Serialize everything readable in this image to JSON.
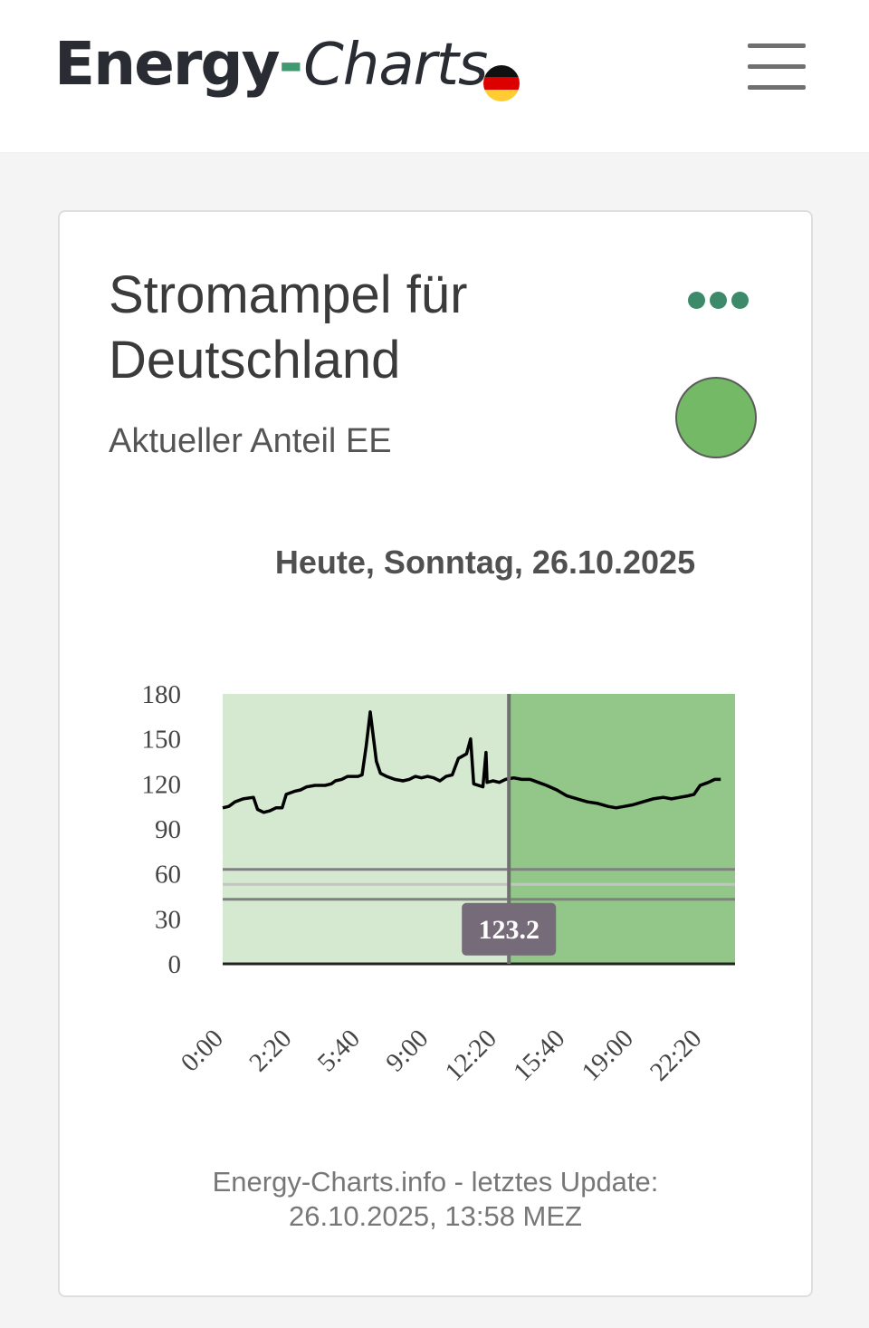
{
  "header": {
    "logo_energy": "Energy",
    "logo_dash": "-",
    "logo_charts": "Charts",
    "flag_colors": [
      "#111111",
      "#dd0000",
      "#ffcc33"
    ],
    "menu_icon": "hamburger-menu-icon"
  },
  "card": {
    "title": "Stromampel für Deutschland",
    "subtitle": "Aktueller Anteil EE",
    "more_icon": "more-dots-icon",
    "status_color": "#74b966",
    "footer_line1": "Energy-Charts.info - letztes Update:",
    "footer_line2": "26.10.2025, 13:58 MEZ"
  },
  "chart_data": {
    "type": "line",
    "title": "Heute, Sonntag, 26.10.2025",
    "xlabel": "",
    "ylabel": "",
    "ylim": [
      0,
      180
    ],
    "yticks": [
      "0",
      "30",
      "60",
      "90",
      "120",
      "150",
      "180"
    ],
    "xticks": [
      "0:00",
      "2:20",
      "5:40",
      "9:00",
      "12:20",
      "15:40",
      "19:00",
      "22:20"
    ],
    "x_range_hours": [
      0,
      25
    ],
    "current_time": "13:58",
    "current_value_label": "123.2",
    "thresholds": [
      43,
      53,
      63
    ],
    "background_past": "#d5e9d0",
    "background_future": "#93c689",
    "series": [
      {
        "points": [
          [
            0.0,
            104
          ],
          [
            0.3,
            105
          ],
          [
            0.6,
            108
          ],
          [
            1.0,
            110
          ],
          [
            1.5,
            111
          ],
          [
            1.7,
            103
          ],
          [
            2.0,
            101
          ],
          [
            2.3,
            102
          ],
          [
            2.6,
            104
          ],
          [
            2.9,
            104
          ],
          [
            3.1,
            113
          ],
          [
            3.5,
            115
          ],
          [
            3.8,
            116
          ],
          [
            4.1,
            118
          ],
          [
            4.5,
            119
          ],
          [
            5.0,
            119
          ],
          [
            5.3,
            120
          ],
          [
            5.5,
            122
          ],
          [
            5.8,
            123
          ],
          [
            6.1,
            125
          ],
          [
            6.6,
            125
          ],
          [
            6.8,
            126
          ],
          [
            7.0,
            145
          ],
          [
            7.2,
            168
          ],
          [
            7.5,
            135
          ],
          [
            7.7,
            127
          ],
          [
            8.0,
            125
          ],
          [
            8.4,
            123
          ],
          [
            8.8,
            122
          ],
          [
            9.1,
            123
          ],
          [
            9.4,
            125
          ],
          [
            9.7,
            124
          ],
          [
            10.0,
            125
          ],
          [
            10.3,
            124
          ],
          [
            10.6,
            122
          ],
          [
            10.9,
            125
          ],
          [
            11.2,
            126
          ],
          [
            11.5,
            137
          ],
          [
            11.9,
            140
          ],
          [
            12.1,
            150
          ],
          [
            12.25,
            120
          ],
          [
            12.7,
            118
          ],
          [
            12.85,
            141
          ],
          [
            12.9,
            121
          ],
          [
            13.2,
            122
          ],
          [
            13.5,
            121
          ],
          [
            13.8,
            123
          ],
          [
            14.2,
            124
          ],
          [
            14.6,
            123
          ],
          [
            15.0,
            123
          ],
          [
            15.4,
            121
          ],
          [
            15.8,
            119
          ],
          [
            16.3,
            116
          ],
          [
            16.8,
            112
          ],
          [
            17.3,
            110
          ],
          [
            17.8,
            108
          ],
          [
            18.3,
            107
          ],
          [
            18.8,
            105
          ],
          [
            19.2,
            104
          ],
          [
            19.6,
            105
          ],
          [
            20.0,
            106
          ],
          [
            20.5,
            108
          ],
          [
            21.0,
            110
          ],
          [
            21.5,
            111
          ],
          [
            21.9,
            110
          ],
          [
            22.3,
            111
          ],
          [
            22.7,
            112
          ],
          [
            23.0,
            113
          ],
          [
            23.3,
            119
          ],
          [
            23.7,
            121
          ],
          [
            24.0,
            123
          ],
          [
            24.3,
            123
          ]
        ]
      }
    ]
  }
}
